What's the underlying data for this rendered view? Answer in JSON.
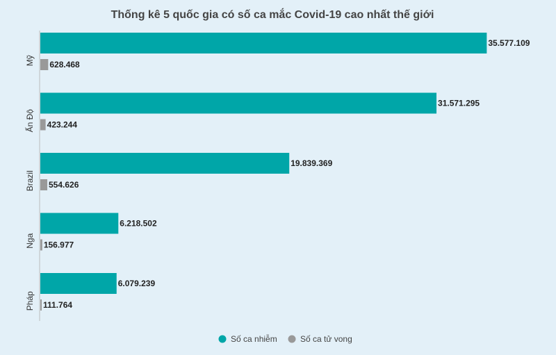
{
  "chart_data": {
    "type": "bar",
    "orientation": "horizontal",
    "title": "Thống kê 5 quốc gia có số ca mắc Covid-19 cao nhất thế giới",
    "categories": [
      "Mỹ",
      "Ấn Độ",
      "Brazil",
      "Nga",
      "Pháp"
    ],
    "series": [
      {
        "name": "Số ca nhiễm",
        "color": "#00a6a8",
        "values": [
          35577109,
          31571295,
          19839369,
          6218502,
          6079239
        ],
        "labels": [
          "35.577.109",
          "31.571.295",
          "19.839.369",
          "6.218.502",
          "6.079.239"
        ]
      },
      {
        "name": "Số ca tử vong",
        "color": "#999999",
        "values": [
          628468,
          423244,
          554626,
          156977,
          111764
        ],
        "labels": [
          "628.468",
          "423.244",
          "554.626",
          "156.977",
          "111.764"
        ]
      }
    ],
    "xlim": [
      0,
      36000000
    ],
    "grid": false,
    "legend_position": "bottom-center"
  }
}
